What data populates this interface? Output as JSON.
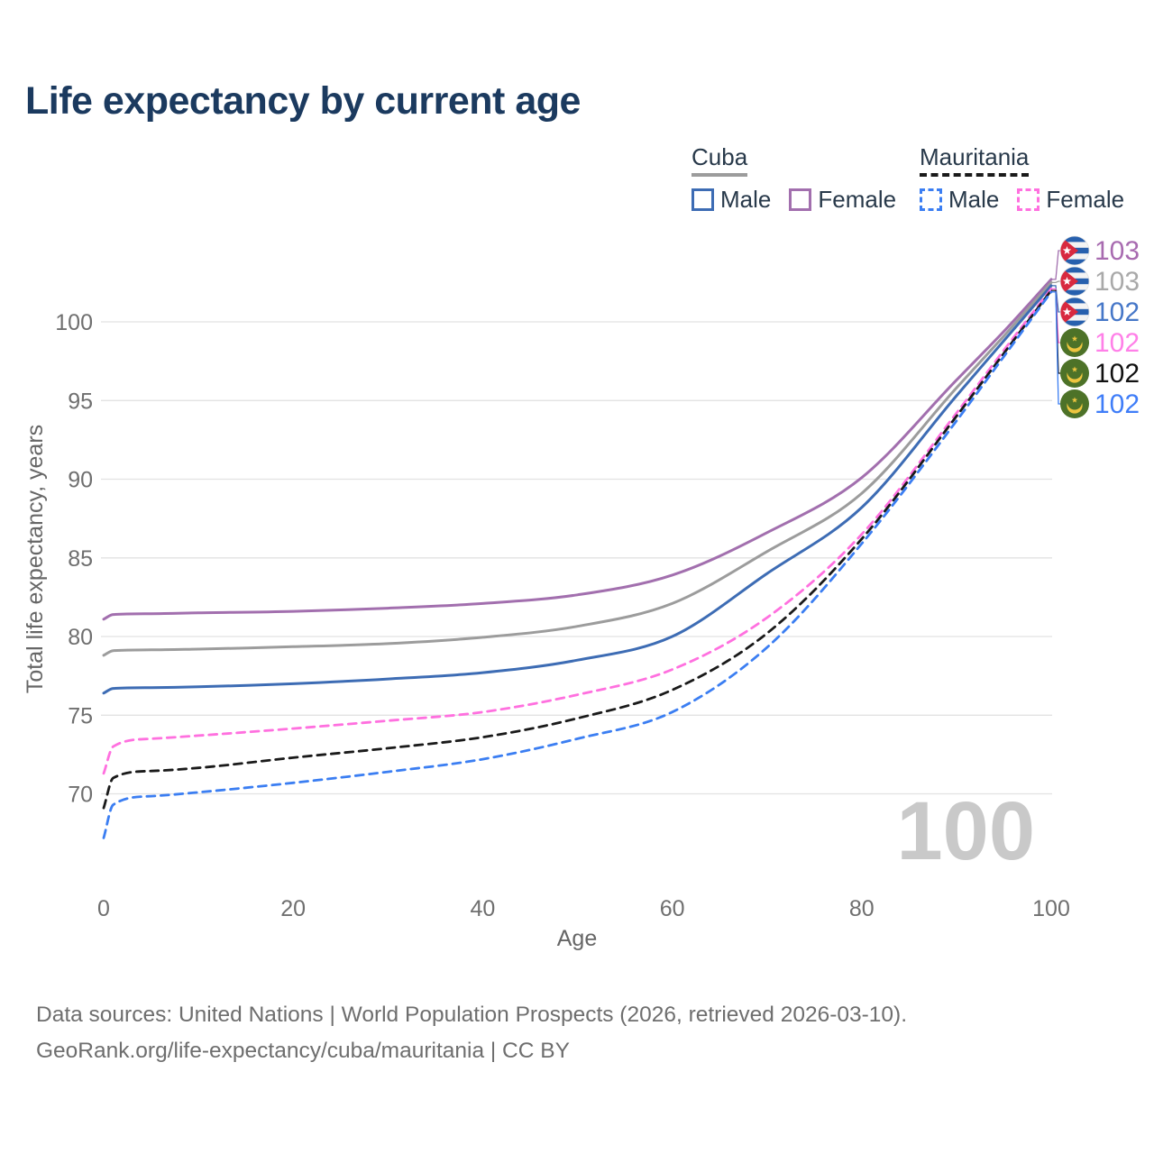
{
  "title": "Life expectancy by current age",
  "legend": {
    "groups": [
      {
        "name": "Cuba",
        "line_style": "solid",
        "underline_color": "#9c9c9c",
        "items": [
          {
            "label": "Male",
            "color": "#3d6cb4"
          },
          {
            "label": "Female",
            "color": "#a26fae"
          }
        ]
      },
      {
        "name": "Mauritania",
        "line_style": "dashed",
        "underline_color": "#1a1a1a",
        "items": [
          {
            "label": "Male",
            "color": "#3b7ef2"
          },
          {
            "label": "Female",
            "color": "#ff70df"
          }
        ]
      }
    ]
  },
  "footer": {
    "line1": "Data sources: United Nations | World Population Prospects (2026, retrieved 2026-03-10).",
    "line2": "GeoRank.org/life-expectancy/cuba/mauritania | CC BY"
  },
  "chart_data": {
    "type": "line",
    "title": "Life expectancy by current age",
    "xlabel": "Age",
    "ylabel": "Total life expectancy, years",
    "xlim": [
      0,
      100
    ],
    "ylim": [
      66,
      104
    ],
    "xticks": [
      0,
      20,
      40,
      60,
      80,
      100
    ],
    "yticks": [
      70,
      75,
      80,
      85,
      90,
      95,
      100
    ],
    "grid": "horizontal-only",
    "age_counter_watermark": "100",
    "x": [
      0,
      1,
      5,
      10,
      20,
      30,
      40,
      50,
      60,
      70,
      80,
      90,
      95,
      100
    ],
    "series": [
      {
        "name": "Cuba Female",
        "country": "Cuba",
        "sex": "Female",
        "style": "solid",
        "color": "#a26fae",
        "flag": "cuba",
        "end_label": "103",
        "end_label_color": "#a86bb0",
        "values": [
          81.1,
          81.4,
          81.45,
          81.5,
          81.6,
          81.8,
          82.1,
          82.65,
          83.9,
          86.6,
          90.1,
          96.3,
          99.4,
          102.7
        ]
      },
      {
        "name": "Cuba Both sexes",
        "country": "Cuba",
        "sex": "Both",
        "style": "solid",
        "color": "#9c9c9c",
        "flag": "cuba",
        "end_label": "103",
        "end_label_color": "#a9a9a9",
        "values": [
          78.8,
          79.1,
          79.15,
          79.2,
          79.35,
          79.55,
          79.95,
          80.65,
          82.1,
          85.4,
          89.1,
          95.8,
          99.1,
          102.5
        ]
      },
      {
        "name": "Cuba Male",
        "country": "Cuba",
        "sex": "Male",
        "style": "solid",
        "color": "#3d6cb4",
        "flag": "cuba",
        "end_label": "102",
        "end_label_color": "#4677c8",
        "values": [
          76.4,
          76.7,
          76.75,
          76.8,
          77.0,
          77.3,
          77.7,
          78.5,
          80.0,
          84.0,
          88.2,
          95.3,
          98.8,
          102.3
        ]
      },
      {
        "name": "Mauritania Female",
        "country": "Mauritania",
        "sex": "Female",
        "style": "dashed",
        "color": "#ff70df",
        "flag": "mauritania",
        "end_label": "102",
        "end_label_color": "#ff80e8",
        "values": [
          71.3,
          73.0,
          73.5,
          73.7,
          74.15,
          74.65,
          75.2,
          76.3,
          77.9,
          81.2,
          86.5,
          94.2,
          98.2,
          102.1
        ]
      },
      {
        "name": "Mauritania Both sexes",
        "country": "Mauritania",
        "sex": "Both",
        "style": "dashed",
        "color": "#1a1a1a",
        "flag": "mauritania",
        "end_label": "102",
        "end_label_color": "#111111",
        "values": [
          69.1,
          71.0,
          71.45,
          71.65,
          72.3,
          72.9,
          73.6,
          74.8,
          76.6,
          80.2,
          86.2,
          94.0,
          98.0,
          102.0
        ]
      },
      {
        "name": "Mauritania Male",
        "country": "Mauritania",
        "sex": "Male",
        "style": "dashed",
        "color": "#3b7ef2",
        "flag": "mauritania",
        "end_label": "102",
        "end_label_color": "#3f7df8",
        "values": [
          67.2,
          69.3,
          69.85,
          70.1,
          70.7,
          71.4,
          72.2,
          73.5,
          75.2,
          79.3,
          85.9,
          93.7,
          97.8,
          101.9
        ]
      }
    ]
  }
}
